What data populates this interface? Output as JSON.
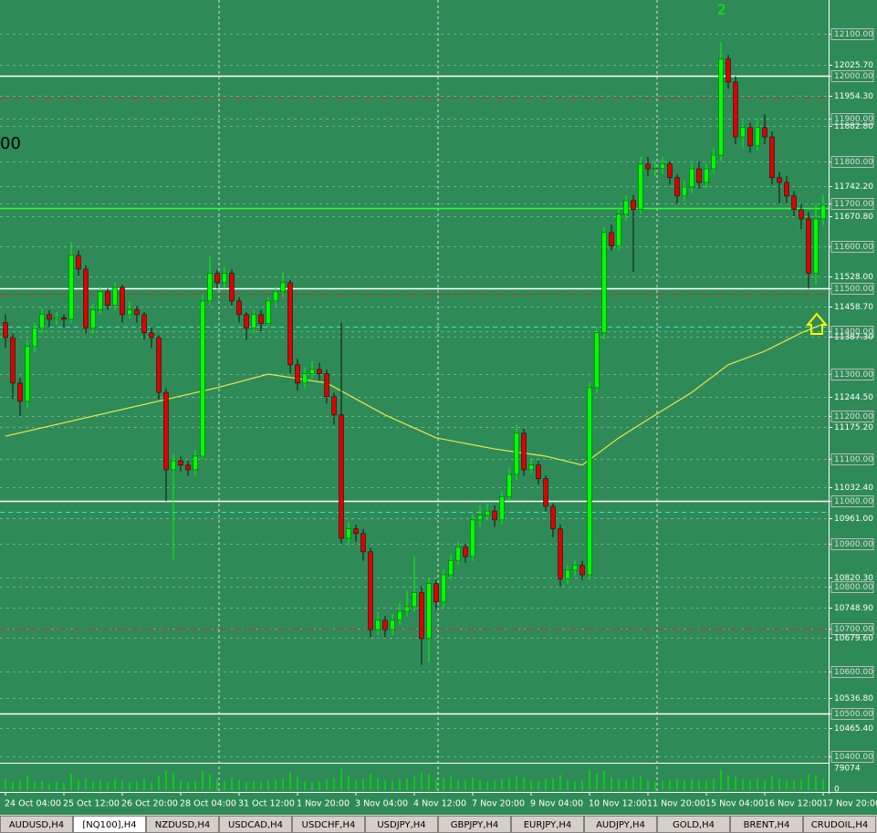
{
  "chart_data": {
    "type": "candlestick",
    "annotations": [
      "00",
      "2"
    ],
    "ylim": [
      10387,
      12179
    ],
    "yticks": [
      {
        "value": 12100,
        "label": "12100.00"
      },
      {
        "value": 12025.7,
        "label": "12025.70"
      },
      {
        "value": 12000,
        "label": "12000.00"
      },
      {
        "value": 11954.3,
        "label": "11954.30"
      },
      {
        "value": 11900,
        "label": "11900.00"
      },
      {
        "value": 11882.8,
        "label": "11882.80"
      },
      {
        "value": 11800,
        "label": "11800.00"
      },
      {
        "value": 11742.2,
        "label": "11742.20"
      },
      {
        "value": 11700,
        "label": "11700.00"
      },
      {
        "value": 11670.8,
        "label": "11670.80"
      },
      {
        "value": 11600,
        "label": "11600.00"
      },
      {
        "value": 11528,
        "label": "11528.00"
      },
      {
        "value": 11500,
        "label": "11500.00"
      },
      {
        "value": 11458.7,
        "label": "11458.70"
      },
      {
        "value": 11400,
        "label": "11400.00"
      },
      {
        "value": 11387.3,
        "label": "11387.30"
      },
      {
        "value": 11300,
        "label": "11300.00"
      },
      {
        "value": 11244.5,
        "label": "11244.50"
      },
      {
        "value": 11200,
        "label": "11200.00"
      },
      {
        "value": 11175.2,
        "label": "11175.20"
      },
      {
        "value": 11100,
        "label": "11100.00"
      },
      {
        "value": 11032.4,
        "label": "11032.40"
      },
      {
        "value": 11000,
        "label": "11000.00"
      },
      {
        "value": 10961,
        "label": "10961.00"
      },
      {
        "value": 10900,
        "label": "10900.00"
      },
      {
        "value": 10820.3,
        "label": "10820.30"
      },
      {
        "value": 10800,
        "label": "10800.00"
      },
      {
        "value": 10748.9,
        "label": "10748.90"
      },
      {
        "value": 10700,
        "label": "10700.00"
      },
      {
        "value": 10679.6,
        "label": "10679.60"
      },
      {
        "value": 10600,
        "label": "10600.00"
      },
      {
        "value": 10536.8,
        "label": "10536.80"
      },
      {
        "value": 10500,
        "label": "10500.00"
      },
      {
        "value": 10465.4,
        "label": "10465.40"
      },
      {
        "value": 10400,
        "label": "10400.00"
      }
    ],
    "categories": [
      "24 Oct 04:00",
      null,
      null,
      null,
      null,
      null,
      null,
      null,
      "25 Oct 12:00",
      null,
      null,
      null,
      null,
      null,
      null,
      null,
      "26 Oct 20:00",
      null,
      null,
      null,
      null,
      null,
      null,
      null,
      "28 Oct 04:00",
      null,
      null,
      null,
      null,
      null,
      null,
      null,
      "31 Oct 12:00",
      null,
      null,
      null,
      null,
      null,
      null,
      null,
      "1 Nov 20:00",
      null,
      null,
      null,
      null,
      null,
      null,
      null,
      "3 Nov 04:00",
      null,
      null,
      null,
      null,
      null,
      null,
      null,
      "4 Nov 12:00",
      null,
      null,
      null,
      null,
      null,
      null,
      null,
      "7 Nov 20:00",
      null,
      null,
      null,
      null,
      null,
      null,
      null,
      "9 Nov 04:00",
      null,
      null,
      null,
      null,
      null,
      null,
      null,
      "10 Nov 12:00",
      null,
      null,
      null,
      null,
      null,
      null,
      null,
      "11 Nov 20:00",
      null,
      null,
      null,
      null,
      null,
      null,
      null,
      "15 Nov 04:00",
      null,
      null,
      null,
      null,
      null,
      null,
      null,
      "16 Nov 12:00",
      null,
      null,
      null,
      null,
      null,
      null,
      null,
      "17 Nov 20:00"
    ],
    "candles": [
      [
        11420,
        11440,
        11360,
        11385
      ],
      [
        11385,
        11395,
        11240,
        11278
      ],
      [
        11278,
        11290,
        11200,
        11235
      ],
      [
        11235,
        11380,
        11220,
        11364
      ],
      [
        11364,
        11420,
        11350,
        11407
      ],
      [
        11407,
        11455,
        11395,
        11439
      ],
      [
        11439,
        11450,
        11410,
        11428
      ],
      [
        11428,
        11445,
        11415,
        11432
      ],
      [
        11432,
        11440,
        11410,
        11428
      ],
      [
        11428,
        11610,
        11420,
        11578
      ],
      [
        11578,
        11590,
        11530,
        11546
      ],
      [
        11546,
        11555,
        11395,
        11407
      ],
      [
        11407,
        11465,
        11395,
        11450
      ],
      [
        11450,
        11505,
        11440,
        11493
      ],
      [
        11493,
        11500,
        11450,
        11461
      ],
      [
        11461,
        11515,
        11450,
        11503
      ],
      [
        11503,
        11510,
        11420,
        11439
      ],
      [
        11439,
        11470,
        11430,
        11450
      ],
      [
        11450,
        11460,
        11420,
        11439
      ],
      [
        11439,
        11445,
        11380,
        11396
      ],
      [
        11396,
        11410,
        11360,
        11385
      ],
      [
        11385,
        11390,
        11240,
        11256
      ],
      [
        11256,
        11265,
        11000,
        11074
      ],
      [
        11074,
        11110,
        10860,
        11095
      ],
      [
        11095,
        11105,
        11070,
        11085
      ],
      [
        11085,
        11095,
        11060,
        11074
      ],
      [
        11074,
        11120,
        11060,
        11106
      ],
      [
        11106,
        11485,
        11100,
        11471
      ],
      [
        11471,
        11575,
        11460,
        11536
      ],
      [
        11536,
        11545,
        11500,
        11514
      ],
      [
        11514,
        11550,
        11500,
        11536
      ],
      [
        11536,
        11545,
        11460,
        11471
      ],
      [
        11471,
        11480,
        11420,
        11439
      ],
      [
        11439,
        11445,
        11380,
        11407
      ],
      [
        11407,
        11450,
        11395,
        11439
      ],
      [
        11439,
        11450,
        11400,
        11418
      ],
      [
        11418,
        11480,
        11410,
        11471
      ],
      [
        11471,
        11505,
        11460,
        11493
      ],
      [
        11493,
        11540,
        11480,
        11514
      ],
      [
        11514,
        11520,
        11300,
        11321
      ],
      [
        11321,
        11335,
        11260,
        11278
      ],
      [
        11278,
        11315,
        11265,
        11300
      ],
      [
        11300,
        11330,
        11290,
        11310
      ],
      [
        11310,
        11325,
        11285,
        11300
      ],
      [
        11300,
        11310,
        11230,
        11246
      ],
      [
        11246,
        11255,
        11180,
        11203
      ],
      [
        11203,
        11420,
        10900,
        10913
      ],
      [
        10913,
        10950,
        10895,
        10935
      ],
      [
        10935,
        10945,
        10905,
        10924
      ],
      [
        10924,
        10935,
        10860,
        10881
      ],
      [
        10881,
        10890,
        10680,
        10698
      ],
      [
        10698,
        10740,
        10685,
        10720
      ],
      [
        10720,
        10730,
        10680,
        10698
      ],
      [
        10698,
        10735,
        10685,
        10720
      ],
      [
        10720,
        10760,
        10710,
        10741
      ],
      [
        10741,
        10790,
        10730,
        10752
      ],
      [
        10752,
        10870,
        10740,
        10785
      ],
      [
        10785,
        10800,
        10615,
        10677
      ],
      [
        10677,
        10820,
        10620,
        10806
      ],
      [
        10806,
        10815,
        10745,
        10763
      ],
      [
        10763,
        10840,
        10750,
        10827
      ],
      [
        10827,
        10875,
        10815,
        10860
      ],
      [
        10860,
        10905,
        10850,
        10892
      ],
      [
        10892,
        10900,
        10855,
        10870
      ],
      [
        10870,
        10970,
        10860,
        10956
      ],
      [
        10956,
        10990,
        10940,
        10967
      ],
      [
        10967,
        10995,
        10955,
        10977
      ],
      [
        10977,
        10990,
        10940,
        10956
      ],
      [
        10956,
        11025,
        10945,
        11010
      ],
      [
        11010,
        11080,
        11000,
        11063
      ],
      [
        11063,
        11180,
        11050,
        11160
      ],
      [
        11160,
        11170,
        11060,
        11074
      ],
      [
        11074,
        11100,
        11065,
        11085
      ],
      [
        11085,
        11095,
        11040,
        11053
      ],
      [
        11053,
        11060,
        10975,
        10988
      ],
      [
        10988,
        10995,
        10915,
        10935
      ],
      [
        10935,
        10945,
        10800,
        10817
      ],
      [
        10817,
        10850,
        10805,
        10838
      ],
      [
        10838,
        10860,
        10825,
        10849
      ],
      [
        10849,
        10860,
        10815,
        10827
      ],
      [
        10827,
        11280,
        10815,
        11267
      ],
      [
        11267,
        11410,
        11255,
        11396
      ],
      [
        11396,
        11645,
        11380,
        11632
      ],
      [
        11632,
        11650,
        11590,
        11600
      ],
      [
        11600,
        11690,
        11590,
        11675
      ],
      [
        11675,
        11720,
        11660,
        11707
      ],
      [
        11707,
        11720,
        11540,
        11686
      ],
      [
        11686,
        11810,
        11675,
        11793
      ],
      [
        11793,
        11810,
        11765,
        11782
      ],
      [
        11782,
        11800,
        11765,
        11783
      ],
      [
        11783,
        11810,
        11770,
        11793
      ],
      [
        11793,
        11800,
        11745,
        11761
      ],
      [
        11761,
        11770,
        11700,
        11718
      ],
      [
        11718,
        11755,
        11705,
        11739
      ],
      [
        11739,
        11795,
        11725,
        11782
      ],
      [
        11782,
        11800,
        11735,
        11750
      ],
      [
        11750,
        11795,
        11735,
        11782
      ],
      [
        11782,
        11830,
        11770,
        11814
      ],
      [
        11814,
        12080,
        11800,
        12040
      ],
      [
        12040,
        12050,
        11970,
        11986
      ],
      [
        11986,
        12000,
        11840,
        11857
      ],
      [
        11857,
        11895,
        11830,
        11879
      ],
      [
        11879,
        11890,
        11820,
        11836
      ],
      [
        11836,
        11900,
        11825,
        11879
      ],
      [
        11879,
        11910,
        11840,
        11857
      ],
      [
        11857,
        11870,
        11745,
        11761
      ],
      [
        11761,
        11775,
        11700,
        11750
      ],
      [
        11750,
        11765,
        11700,
        11718
      ],
      [
        11718,
        11730,
        11670,
        11686
      ],
      [
        11686,
        11700,
        11640,
        11664
      ],
      [
        11664,
        11680,
        11500,
        11536
      ],
      [
        11536,
        11700,
        11510,
        11664
      ],
      [
        11664,
        11720,
        11650,
        11696
      ]
    ],
    "bull_color": "#00ff00",
    "bear_color": "#e00000",
    "volume": {
      "color": "#00e000",
      "ylim": [
        0,
        93000
      ],
      "yticks": [
        79074,
        0
      ],
      "values": [
        42000,
        30000,
        35000,
        52000,
        28000,
        33000,
        25000,
        30000,
        27000,
        60000,
        38000,
        45000,
        31000,
        36000,
        29000,
        40000,
        34000,
        28000,
        30000,
        41000,
        26000,
        50000,
        72000,
        65000,
        35000,
        30000,
        33000,
        70000,
        58000,
        40000,
        34000,
        44000,
        37000,
        30000,
        32000,
        28000,
        35000,
        39000,
        42000,
        66000,
        48000,
        33000,
        29000,
        31000,
        40000,
        45000,
        79000,
        52000,
        38000,
        41000,
        60000,
        44000,
        36000,
        33000,
        39000,
        42000,
        50000,
        63000,
        58000,
        40000,
        45000,
        48000,
        39000,
        35000,
        46000,
        37000,
        31000,
        34000,
        40000,
        44000,
        52000,
        47000,
        35000,
        33000,
        41000,
        44000,
        55000,
        38000,
        32000,
        36000,
        75000,
        60000,
        70000,
        45000,
        42000,
        39000,
        48000,
        50000,
        36000,
        30000,
        33000,
        38000,
        42000,
        35000,
        40000,
        37000,
        34000,
        41000,
        73000,
        55000,
        48000,
        40000,
        38000,
        42000,
        36000,
        50000,
        41000,
        37000,
        35000,
        39000,
        58000,
        52000,
        40000
      ]
    },
    "levels": [
      {
        "price": 12000,
        "color": "#ffffff",
        "style": "solid"
      },
      {
        "price": 11500,
        "color": "#ffffff",
        "style": "solid"
      },
      {
        "price": 11000,
        "color": "#ffffff",
        "style": "solid"
      },
      {
        "price": 10500,
        "color": "#ffffff",
        "style": "solid"
      },
      {
        "price": 11950,
        "color": "#c0392b",
        "style": "dashdot"
      },
      {
        "price": 11488,
        "color": "#c0392b",
        "style": "dashdot"
      },
      {
        "price": 10700,
        "color": "#c0392b",
        "style": "dashdot"
      },
      {
        "price": 11410,
        "color": "#40e0d0",
        "style": "dashed"
      },
      {
        "price": 10975,
        "color": "#40e0d0",
        "style": "dashed"
      },
      {
        "price": 11690,
        "color": "#32ff32",
        "style": "solid"
      }
    ],
    "ma": {
      "color": "#e8e84a",
      "index": [
        0,
        29,
        36,
        44,
        52,
        59,
        67,
        74,
        79,
        84,
        89,
        94,
        99,
        104,
        109,
        112
      ],
      "values": [
        11153,
        11267,
        11299,
        11278,
        11203,
        11149,
        11123,
        11106,
        11085,
        11149,
        11203,
        11256,
        11321,
        11353,
        11396,
        11417
      ]
    }
  },
  "tabs": [
    "AUDUSD,H4",
    "[NQ100],H4",
    "NZDUSD,H4",
    "USDCAD,H4",
    "USDCHF,H4",
    "USDJPY,H4",
    "GBPJPY,H4",
    "EURJPY,H4",
    "AUDJPY,H4",
    "GOLD,H4",
    "BRENT,H4",
    "CRUDOIL,H4"
  ],
  "active_tab": 1
}
